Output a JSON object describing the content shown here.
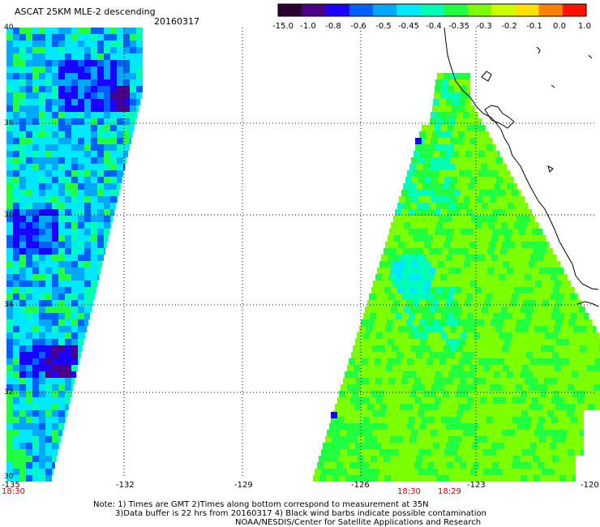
{
  "header": {
    "title": "ASCAT 25KM MLE-2 descending",
    "date": "20160317"
  },
  "colorbar": {
    "labels": [
      "-15.0",
      "-1.0",
      "-0.8",
      "-0.6",
      "-0.5",
      "-0.45",
      "-0.4",
      "-0.35",
      "-0.3",
      "-0.2",
      "-0.1",
      "0.0",
      "1.0"
    ],
    "colors": [
      "#2a0030",
      "#4a0088",
      "#1a00ff",
      "#0060ff",
      "#00a8ff",
      "#00e8ff",
      "#00ffb4",
      "#20ff40",
      "#7cff00",
      "#ccff00",
      "#ffe000",
      "#ff8000",
      "#ff1000"
    ]
  },
  "map": {
    "lon_ticks": [
      "-135",
      "-132",
      "-129",
      "-126",
      "-123",
      "-120"
    ],
    "lat_ticks": [
      "30",
      "32",
      "34",
      "36",
      "38",
      "40"
    ],
    "time_labels": [
      "18:30",
      "18:30",
      "18:29"
    ],
    "colors": {
      "blue_dark": "#1a00ff",
      "blue": "#0060ff",
      "sky": "#00a8ff",
      "cyan": "#00e8ff",
      "aqua": "#00ffb4",
      "green": "#20ff40",
      "lime": "#7cff00",
      "purple": "#4a0088",
      "time_red": "#cc0000"
    }
  },
  "footer": {
    "note1": "Note: 1) Times are GMT 2)Times along bottom correspond to measurement at 35N",
    "note2": "3)Data buffer is 22 hrs from 20160317 4) Black wind barbs indicate possible contamination",
    "note3": "NOAA/NESDIS/Center for Satellite Applications and Research"
  }
}
